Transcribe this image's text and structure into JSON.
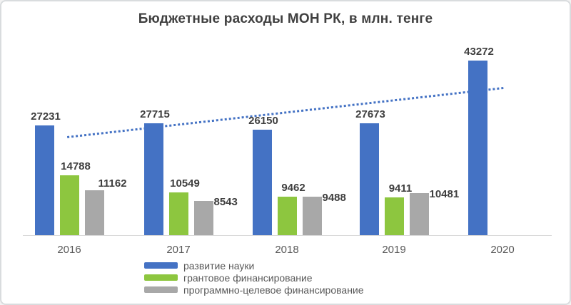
{
  "chart_data": {
    "type": "bar",
    "title": "Бюджетные расходы МОН РК, в млн. тенге",
    "units": "млн. тенге",
    "categories": [
      "2016",
      "2017",
      "2018",
      "2019",
      "2020"
    ],
    "series": [
      {
        "name": "развитие науки",
        "color": "#4472C4",
        "values": [
          27231,
          27715,
          26150,
          27673,
          43272
        ]
      },
      {
        "name": "грантовое финансирование",
        "color": "#8DC63F",
        "values": [
          14788,
          10549,
          9462,
          9411,
          null
        ]
      },
      {
        "name": "программно-целевое финансирование",
        "color": "#A8A8A8",
        "values": [
          11162,
          8543,
          9488,
          10481,
          null
        ]
      }
    ],
    "trendline": {
      "applies_to": "развитие науки",
      "style": "dotted",
      "color": "#4472C4"
    },
    "value_labels": true,
    "grid": false,
    "legend_position": "bottom-left",
    "xlabel": "",
    "ylabel": "",
    "ylim": [
      0,
      43272
    ]
  },
  "colors": {
    "title_text": "#404040",
    "value_label_text": "#3f3f3f",
    "axis_text": "#595959",
    "axis_line": "#d9d9d9",
    "frame_border": "#d9dcde",
    "background": "#ffffff"
  }
}
